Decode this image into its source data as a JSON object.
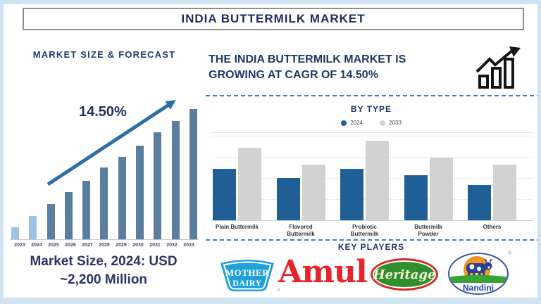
{
  "page": {
    "title": "INDIA BUTTERMILK MARKET"
  },
  "left_panel": {
    "section_title": "MARKET SIZE & FORECAST",
    "cagr_label": "14.50%",
    "note_line1": "Market Size, 2024: USD",
    "note_line2": "~2,200 Million"
  },
  "right_panel": {
    "headline_line1": "THE INDIA BUTTERMILK MARKET IS",
    "headline_line2": "GROWING AT CAGR OF 14.50%",
    "by_type_title": "BY TYPE",
    "key_players": {
      "title": "KEY PLAYERS",
      "players": [
        {
          "name": "Mother Dairy",
          "text_line1": "MOTHER",
          "text_line2": "DAIRY",
          "reg": "®"
        },
        {
          "name": "Amul",
          "text": "Amul"
        },
        {
          "name": "Heritage",
          "text": "Heritage"
        },
        {
          "name": "Nandini",
          "text": "Nandini",
          "reg": "®"
        }
      ]
    }
  },
  "chart_data": [
    {
      "type": "bar",
      "title": "MARKET SIZE & FORECAST",
      "categories": [
        "2023",
        "2024",
        "2025",
        "2026",
        "2027",
        "2028",
        "2029",
        "2030",
        "2031",
        "2032",
        "2033"
      ],
      "values_relative": [
        9,
        18,
        27,
        36,
        45,
        55,
        63,
        72,
        82,
        91,
        100
      ],
      "units": "relative height, no value axis shown",
      "highlight_categories": [
        "2023",
        "2024"
      ],
      "annotation": "14.50% CAGR trend arrow",
      "note": "Market Size, 2024: USD ~2,200 Million",
      "grid": false,
      "bar_color": "#5b7e9f",
      "highlight_bar_color": "#9dc3e6"
    },
    {
      "type": "grouped_bar",
      "title": "BY TYPE",
      "categories": [
        "Plain Buttermilk",
        "Flavored Buttermilk",
        "Probiotic Buttermilk",
        "Buttermilk Powder",
        "Others"
      ],
      "series": [
        {
          "name": "2024",
          "color": "#1f5f96",
          "values_relative": [
            65,
            53,
            65,
            57,
            44
          ]
        },
        {
          "name": "2033",
          "color": "#d2d2d2",
          "values_relative": [
            91,
            70,
            100,
            79,
            70
          ]
        }
      ],
      "units": "relative height, no value axis shown",
      "legend_position": "top center",
      "grid": true
    }
  ],
  "icons": {
    "growth_chart": "bar-chart-with-zigzag-up-arrow",
    "trend_arrow": "diagonal-up-right-arrow",
    "legend_dot": "filled-circle",
    "nandini_sun": "orange-sun",
    "nandini_cow": "cow",
    "nandini_grass": "grass-band",
    "registered": "®"
  },
  "colors": {
    "frame_light_blue": "#cfe3f2",
    "title_navy": "#1c2a5e",
    "headline_navy": "#1f3864",
    "forecast_bar_steel": "#5b7e9f",
    "forecast_bar_light": "#9dc3e6",
    "arrow_blue": "#2e6ea6",
    "dashed_line_blue": "#3f7dc1",
    "bar_2024_blue": "#1f5f96",
    "bar_2033_gray": "#d2d2d2",
    "amul_red": "#e5252a",
    "heritage_green": "#2f8f2e",
    "heritage_red": "#d7282a",
    "mother_dairy_blue": "#22a0dc",
    "nandini_blue": "#3a57a7"
  }
}
